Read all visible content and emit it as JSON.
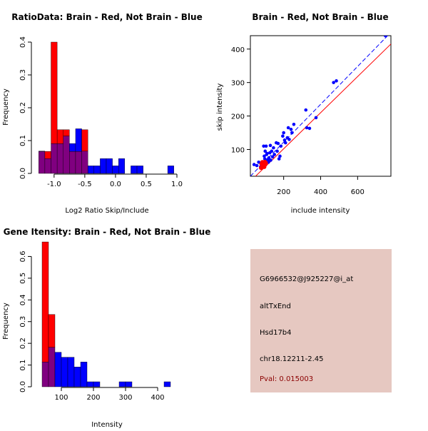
{
  "chart_data": [
    {
      "type": "bar",
      "subtype": "overlaid-histogram",
      "title": "RatioData: Brain - Red, Not Brain - Blue",
      "xlabel": "Log2 Ratio Skip/Include",
      "ylabel": "Frequency",
      "xlim": [
        -1.3,
        1.0
      ],
      "ylim": [
        0,
        0.4
      ],
      "xticks": [
        -1.0,
        -0.5,
        0.0,
        0.5,
        1.0
      ],
      "xtick_labels": [
        "-1.0",
        "-0.5",
        "0.0",
        "0.5",
        "1.0"
      ],
      "yticks": [
        0.0,
        0.1,
        0.2,
        0.3,
        0.4
      ],
      "ytick_labels": [
        "0.0",
        "0.1",
        "0.2",
        "0.3",
        "0.4"
      ],
      "bin_edges": [
        -1.25,
        -1.15,
        -1.05,
        -0.95,
        -0.85,
        -0.75,
        -0.65,
        -0.55,
        -0.45,
        -0.35,
        -0.25,
        -0.15,
        -0.05,
        0.05,
        0.15,
        0.25,
        0.35,
        0.45,
        0.55,
        0.65,
        0.75,
        0.85,
        0.95
      ],
      "series": [
        {
          "name": "Brain",
          "color": "#ff0000",
          "values": [
            0.067,
            0.067,
            0.4,
            0.133,
            0.133,
            0.067,
            0.067,
            0.133,
            0,
            0,
            0,
            0,
            0,
            0,
            0,
            0,
            0,
            0,
            0,
            0,
            0,
            0
          ]
        },
        {
          "name": "Not Brain",
          "color": "#0000ff",
          "values": [
            0.068,
            0.045,
            0.091,
            0.091,
            0.114,
            0.091,
            0.136,
            0.068,
            0.023,
            0.023,
            0.045,
            0.045,
            0.023,
            0.045,
            0,
            0.023,
            0.023,
            0,
            0,
            0,
            0,
            0.023
          ]
        }
      ]
    },
    {
      "type": "scatter",
      "title": "Brain - Red, Not Brain - Blue",
      "xlabel": "include intensity",
      "ylabel": "skip intensity",
      "xlim": [
        20,
        780
      ],
      "ylim": [
        20,
        440
      ],
      "xticks": [
        200,
        400,
        600
      ],
      "xtick_labels": [
        "200",
        "400",
        "600"
      ],
      "yticks": [
        100,
        200,
        300,
        400
      ],
      "ytick_labels": [
        "100",
        "200",
        "300",
        "400"
      ],
      "series": [
        {
          "name": "Not Brain",
          "color": "#0000ff",
          "points": [
            [
              40,
              55
            ],
            [
              55,
              52
            ],
            [
              65,
              62
            ],
            [
              75,
              48
            ],
            [
              80,
              45
            ],
            [
              85,
              60
            ],
            [
              88,
              58
            ],
            [
              90,
              52
            ],
            [
              92,
              110
            ],
            [
              95,
              80
            ],
            [
              98,
              72
            ],
            [
              100,
              95
            ],
            [
              102,
              65
            ],
            [
              105,
              110
            ],
            [
              108,
              85
            ],
            [
              110,
              88
            ],
            [
              115,
              70
            ],
            [
              118,
              62
            ],
            [
              120,
              75
            ],
            [
              125,
              90
            ],
            [
              128,
              112
            ],
            [
              130,
              68
            ],
            [
              135,
              95
            ],
            [
              140,
              78
            ],
            [
              145,
              105
            ],
            [
              150,
              85
            ],
            [
              160,
              120
            ],
            [
              165,
              95
            ],
            [
              170,
              118
            ],
            [
              175,
              72
            ],
            [
              180,
              80
            ],
            [
              185,
              110
            ],
            [
              195,
              140
            ],
            [
              200,
              150
            ],
            [
              205,
              128
            ],
            [
              210,
              120
            ],
            [
              220,
              135
            ],
            [
              225,
              165
            ],
            [
              230,
              130
            ],
            [
              240,
              160
            ],
            [
              245,
              150
            ],
            [
              255,
              175
            ],
            [
              320,
              218
            ],
            [
              325,
              165
            ],
            [
              340,
              163
            ],
            [
              375,
              195
            ],
            [
              470,
              300
            ],
            [
              485,
              305
            ],
            [
              750,
              440
            ]
          ]
        },
        {
          "name": "Brain",
          "color": "#ff0000",
          "points": [
            [
              80,
              57
            ],
            [
              85,
              62
            ],
            [
              88,
              55
            ],
            [
              90,
              60
            ],
            [
              92,
              52
            ],
            [
              95,
              58
            ],
            [
              98,
              63
            ],
            [
              100,
              55
            ],
            [
              103,
              60
            ],
            [
              78,
              45
            ],
            [
              95,
              48
            ]
          ]
        }
      ],
      "fit_lines": [
        {
          "name": "Not Brain fit",
          "color": "#0000ff",
          "style": "dashed",
          "x": [
            20,
            780
          ],
          "y": [
            20,
            450
          ]
        },
        {
          "name": "Brain fit",
          "color": "#ff0000",
          "style": "solid",
          "x": [
            20,
            780
          ],
          "y": [
            5,
            415
          ]
        }
      ]
    },
    {
      "type": "bar",
      "subtype": "overlaid-histogram",
      "title": "Gene Itensity: Brain - Red, Not Brain - Blue",
      "xlabel": "Intensity",
      "ylabel": "Frequency",
      "xlim": [
        20,
        460
      ],
      "ylim": [
        0,
        0.7
      ],
      "xticks": [
        100,
        200,
        300,
        400
      ],
      "xtick_labels": [
        "100",
        "200",
        "300",
        "400"
      ],
      "yticks": [
        0.0,
        0.1,
        0.2,
        0.3,
        0.4,
        0.5,
        0.6
      ],
      "ytick_labels": [
        "0.0",
        "0.1",
        "0.2",
        "0.3",
        "0.4",
        "0.5",
        "0.6"
      ],
      "bin_edges": [
        40,
        60,
        80,
        100,
        120,
        140,
        160,
        180,
        200,
        220,
        240,
        260,
        280,
        300,
        320,
        340,
        360,
        380,
        400,
        420,
        440
      ],
      "series": [
        {
          "name": "Brain",
          "color": "#ff0000",
          "values": [
            0.667,
            0.333,
            0,
            0,
            0,
            0,
            0,
            0,
            0,
            0,
            0,
            0,
            0,
            0,
            0,
            0,
            0,
            0,
            0,
            0
          ]
        },
        {
          "name": "Not Brain",
          "color": "#0000ff",
          "values": [
            0.114,
            0.182,
            0.159,
            0.136,
            0.136,
            0.091,
            0.114,
            0.023,
            0.023,
            0,
            0,
            0,
            0.023,
            0.023,
            0,
            0,
            0,
            0,
            0,
            0.023
          ]
        }
      ]
    }
  ],
  "overlap_color": "#800080",
  "info_panel": {
    "probe_id": "G6966532@J925227@i_at",
    "event_type": "altTxEnd",
    "gene": "Hsd17b4",
    "location": "chr18.12211-2.45",
    "pval": "Pval: 0.015003"
  }
}
